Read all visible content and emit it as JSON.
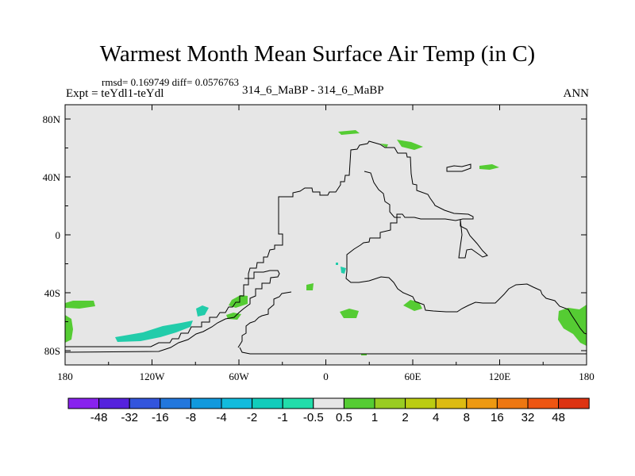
{
  "title": "Warmest Month Mean Surface Air Temp (in C)",
  "stats": "rmsd= 0.169749  diff= 0.0576763",
  "experiment": "Expt = teYdl1-teYdl",
  "case_label": "314_6_MaBP - 314_6_MaBP",
  "season": "ANN",
  "colors": {
    "ocean": "#e6e6e6",
    "coast": "#000000",
    "positive_anomaly": "#55cc33",
    "negative_anomaly": "#22ccaa"
  },
  "axes": {
    "lon_labels": [
      "180",
      "120W",
      "60W",
      "0",
      "60E",
      "120E",
      "180"
    ],
    "lon_values": [
      -180,
      -120,
      -60,
      0,
      60,
      120,
      180
    ],
    "lat_labels": [
      "80N",
      "40N",
      "0",
      "40S",
      "80S"
    ],
    "lat_values": [
      80,
      40,
      0,
      -40,
      -80
    ]
  },
  "colorbar": {
    "labels": [
      "-48",
      "-32",
      "-16",
      "-8",
      "-4",
      "-2",
      "-1",
      "-0.5",
      "0.5",
      "1",
      "2",
      "4",
      "8",
      "16",
      "32",
      "48"
    ],
    "colors": [
      "#8822ee",
      "#5522dd",
      "#3355dd",
      "#2277dd",
      "#1199dd",
      "#11bbdd",
      "#11ccbb",
      "#22ddaa",
      "#e6e6e6",
      "#55cc33",
      "#99cc22",
      "#bbcc11",
      "#ddbb11",
      "#ee9911",
      "#ee7711",
      "#ee5511",
      "#dd3311"
    ]
  }
}
